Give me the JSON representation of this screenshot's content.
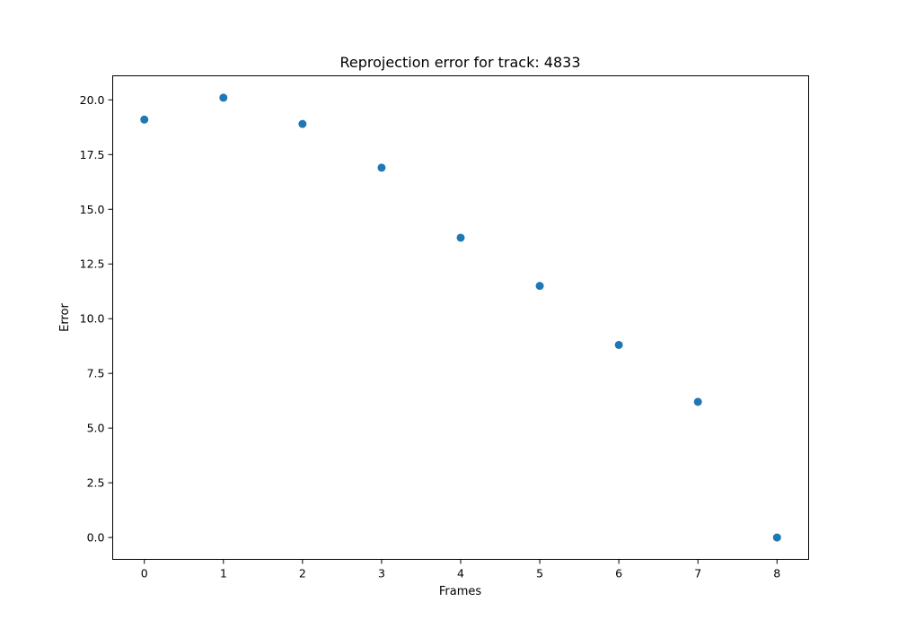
{
  "chart_data": {
    "type": "scatter",
    "title": "Reprojection error for track: 4833",
    "xlabel": "Frames",
    "ylabel": "Error",
    "x": [
      0,
      1,
      2,
      3,
      4,
      5,
      6,
      7,
      8
    ],
    "y": [
      19.1,
      20.1,
      18.9,
      16.9,
      13.7,
      11.5,
      8.8,
      6.2,
      0.0
    ],
    "xlim": [
      -0.4,
      8.4
    ],
    "ylim": [
      -1.0,
      21.1
    ],
    "xticks": [
      0,
      1,
      2,
      3,
      4,
      5,
      6,
      7,
      8
    ],
    "xtick_labels": [
      "0",
      "1",
      "2",
      "3",
      "4",
      "5",
      "6",
      "7",
      "8"
    ],
    "yticks": [
      0,
      2.5,
      5,
      7.5,
      10,
      12.5,
      15,
      17.5,
      20
    ],
    "ytick_labels": [
      "0.0",
      "2.5",
      "5.0",
      "7.5",
      "10.0",
      "12.5",
      "15.0",
      "17.5",
      "20.0"
    ],
    "grid": false,
    "marker_color": "#1f77b4"
  }
}
